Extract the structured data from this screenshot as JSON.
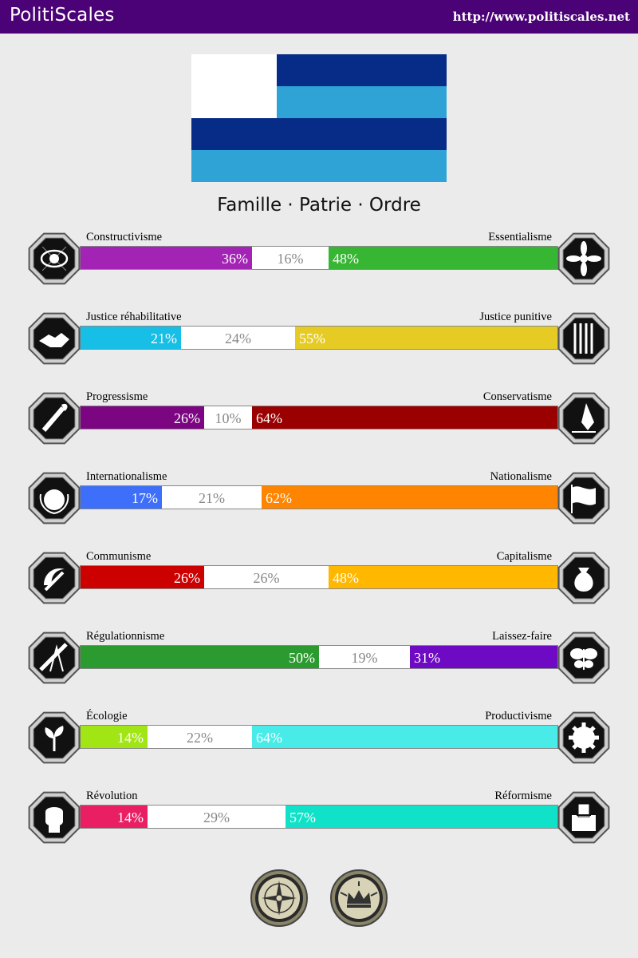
{
  "header": {
    "brand": "PolitiScales",
    "url": "http://www.politiscales.net",
    "background": "#4b0276"
  },
  "flag": {
    "colors": {
      "white": "#ffffff",
      "navy": "#072c87",
      "sky": "#2fa3d5"
    }
  },
  "slogan": "Famille · Patrie · Ordre",
  "axes": [
    {
      "left_label": "Constructivisme",
      "right_label": "Essentialisme",
      "left_pct": 36,
      "mid_pct": 16,
      "right_pct": 48,
      "left_text": "36%",
      "mid_text": "16%",
      "right_text": "48%",
      "left_color": "#a323b5",
      "right_color": "#36b633",
      "left_icon": "eye-icon",
      "right_icon": "flower-icon"
    },
    {
      "left_label": "Justice réhabilitative",
      "right_label": "Justice punitive",
      "left_pct": 21,
      "mid_pct": 24,
      "right_pct": 55,
      "left_text": "21%",
      "mid_text": "24%",
      "right_text": "55%",
      "left_color": "#17bee6",
      "right_color": "#e6cb25",
      "left_icon": "handshake-icon",
      "right_icon": "prison-bars-icon"
    },
    {
      "left_label": "Progressisme",
      "right_label": "Conservatisme",
      "left_pct": 26,
      "mid_pct": 10,
      "right_pct": 64,
      "left_text": "26%",
      "mid_text": "10%",
      "right_text": "64%",
      "left_color": "#7c0582",
      "right_color": "#9a0000",
      "left_icon": "torch-icon",
      "right_icon": "pen-nib-icon"
    },
    {
      "left_label": "Internationalisme",
      "right_label": "Nationalisme",
      "left_pct": 17,
      "mid_pct": 21,
      "right_pct": 62,
      "left_text": "17%",
      "mid_text": "21%",
      "right_text": "62%",
      "left_color": "#3e6ffa",
      "right_color": "#ff8500",
      "left_icon": "globe-laurel-icon",
      "right_icon": "waving-flag-icon"
    },
    {
      "left_label": "Communisme",
      "right_label": "Capitalisme",
      "left_pct": 26,
      "mid_pct": 26,
      "right_pct": 48,
      "left_text": "26%",
      "mid_text": "26%",
      "right_text": "48%",
      "left_color": "#cd0000",
      "right_color": "#ffb700",
      "left_icon": "hammer-sickle-icon",
      "right_icon": "money-bag-icon"
    },
    {
      "left_label": "Régulationnisme",
      "right_label": "Laissez-faire",
      "left_pct": 50,
      "mid_pct": 19,
      "right_pct": 31,
      "left_text": "50%",
      "mid_text": "19%",
      "right_text": "31%",
      "left_color": "#2c9b2f",
      "right_color": "#6f0ac4",
      "left_icon": "ruler-compass-icon",
      "right_icon": "butterfly-icon"
    },
    {
      "left_label": "Écologie",
      "right_label": "Productivisme",
      "left_pct": 14,
      "mid_pct": 22,
      "right_pct": 64,
      "left_text": "14%",
      "mid_text": "22%",
      "right_text": "64%",
      "left_color": "#a1e515",
      "right_color": "#48ebe8",
      "left_icon": "sprout-icon",
      "right_icon": "gear-icon"
    },
    {
      "left_label": "Révolution",
      "right_label": "Réformisme",
      "left_pct": 14,
      "mid_pct": 29,
      "right_pct": 57,
      "left_text": "14%",
      "mid_text": "29%",
      "right_text": "57%",
      "left_color": "#e91e63",
      "right_color": "#0fe2c8",
      "left_icon": "fist-icon",
      "right_icon": "ballot-box-icon"
    }
  ],
  "badges": [
    {
      "name": "compass-seal-icon"
    },
    {
      "name": "crown-seal-icon"
    }
  ]
}
